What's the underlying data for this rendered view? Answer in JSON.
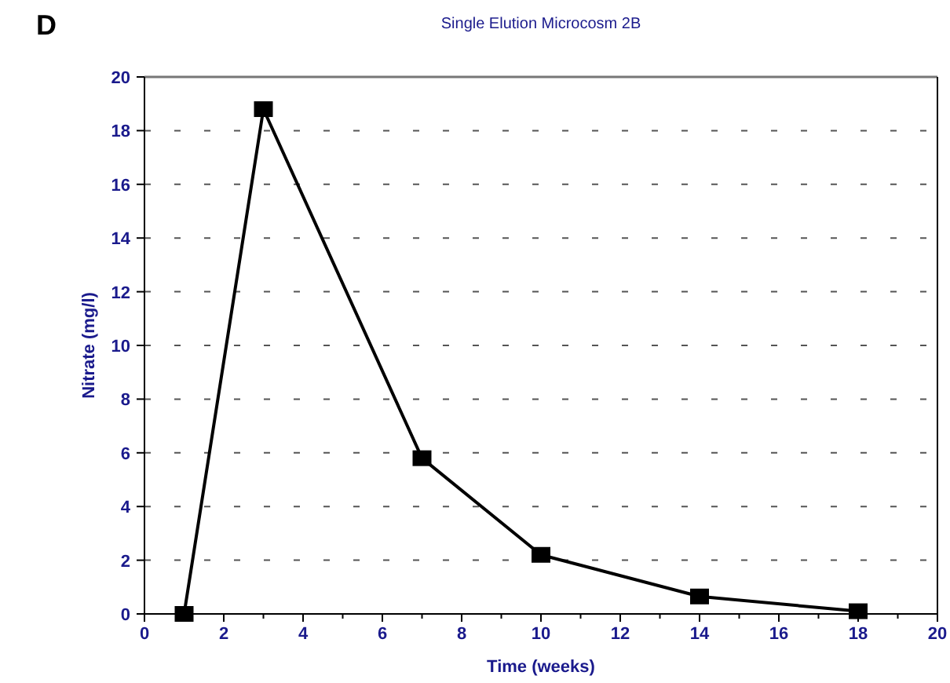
{
  "chart_data": {
    "type": "line",
    "title": "Single Elution Microcosm 2B",
    "xlabel": "Time (weeks)",
    "ylabel": "Nitrate (mg/l)",
    "annotations": [
      "D"
    ],
    "x": [
      1,
      3,
      7,
      10,
      14,
      18
    ],
    "series": [
      {
        "color": "#000000",
        "values": [
          0,
          18.8,
          5.8,
          2.2,
          0.65,
          0.1
        ]
      }
    ],
    "xlim": [
      0,
      20
    ],
    "xticks": [
      0,
      {
        "value": 1,
        "label": null
      },
      2,
      {
        "value": 3,
        "label": null
      },
      4,
      {
        "value": 5,
        "label": null
      },
      6,
      {
        "value": 7,
        "label": null
      },
      8,
      {
        "value": 9,
        "label": null
      },
      10,
      {
        "value": 11,
        "label": null
      },
      12,
      {
        "value": 13,
        "label": null
      },
      14,
      {
        "value": 15,
        "label": null
      },
      16,
      {
        "value": 17,
        "label": null
      },
      18,
      {
        "value": 19,
        "label": null
      },
      20
    ],
    "ylim": [
      0,
      20
    ],
    "yticks": [
      0,
      2,
      4,
      6,
      8,
      10,
      12,
      14,
      16,
      18,
      20
    ],
    "grid": "y",
    "marker": "square",
    "line_style": "solid"
  }
}
